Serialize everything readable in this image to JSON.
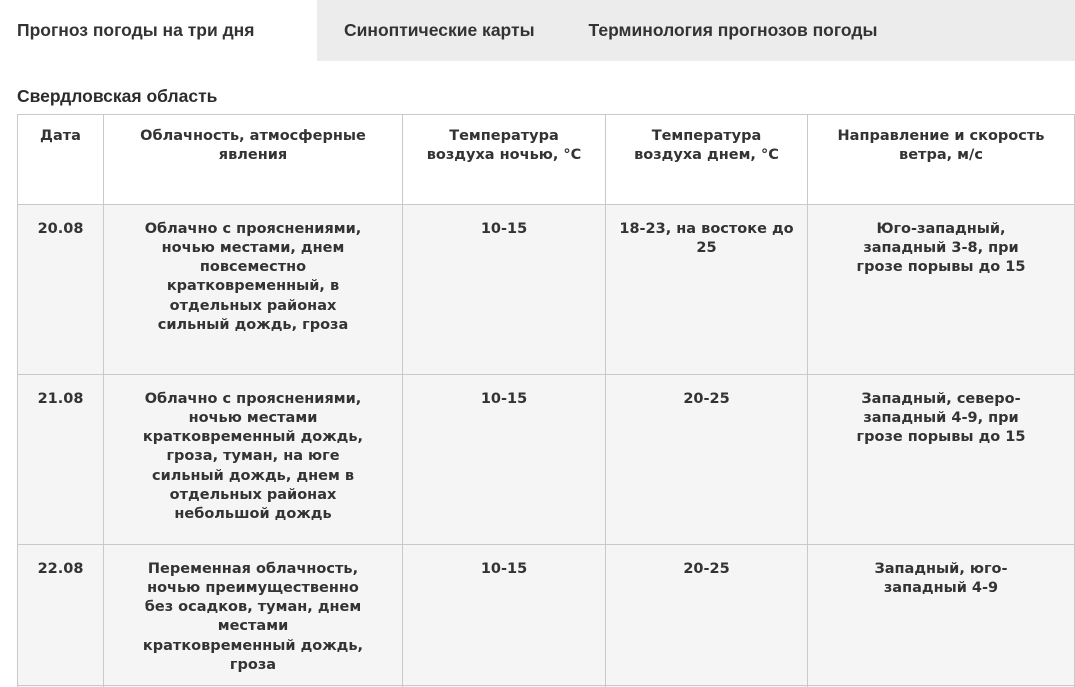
{
  "tabs": [
    {
      "label": "Прогноз погоды на три дня",
      "active": true
    },
    {
      "label": "Синоптические карты",
      "active": false
    },
    {
      "label": "Терминология прогнозов погоды",
      "active": false
    }
  ],
  "region_title": "Свердловская область",
  "table": {
    "headers": [
      "Дата",
      "Облачность, атмосферные явления",
      "Температура воздуха ночью, °С",
      "Температура воздуха днем, °С",
      "Направление и скорость ветра, м/с"
    ],
    "rows": [
      {
        "date": "20.08",
        "clouds": "Облачно с прояснениями, ночью местами, днем повсеместно кратковременный, в отдельных районах сильный дождь, гроза",
        "temp_night": "10-15",
        "temp_day": "18-23, на востоке до 25",
        "wind": "Юго-западный, западный 3-8, при грозе порывы до 15"
      },
      {
        "date": "21.08",
        "clouds": "Облачно с прояснениями, ночью местами кратковременный дождь, гроза, туман, на юге сильный дождь, днем в отдельных районах небольшой дождь",
        "temp_night": "10-15",
        "temp_day": "20-25",
        "wind": "Западный, северо-западный 4-9, при грозе порывы до 15"
      },
      {
        "date": "22.08",
        "clouds": "Переменная облачность, ночью преимущественно без осадков, туман, днем местами кратковременный дождь, гроза",
        "temp_night": "10-15",
        "temp_day": "20-25",
        "wind": "Западный, юго-западный 4-9"
      }
    ]
  },
  "colors": {
    "tab_inactive_bg": "#ececec",
    "tab_active_bg": "#ffffff",
    "text": "#333333",
    "row_bg": "#f5f5f5",
    "border": "#c9c9c9"
  }
}
